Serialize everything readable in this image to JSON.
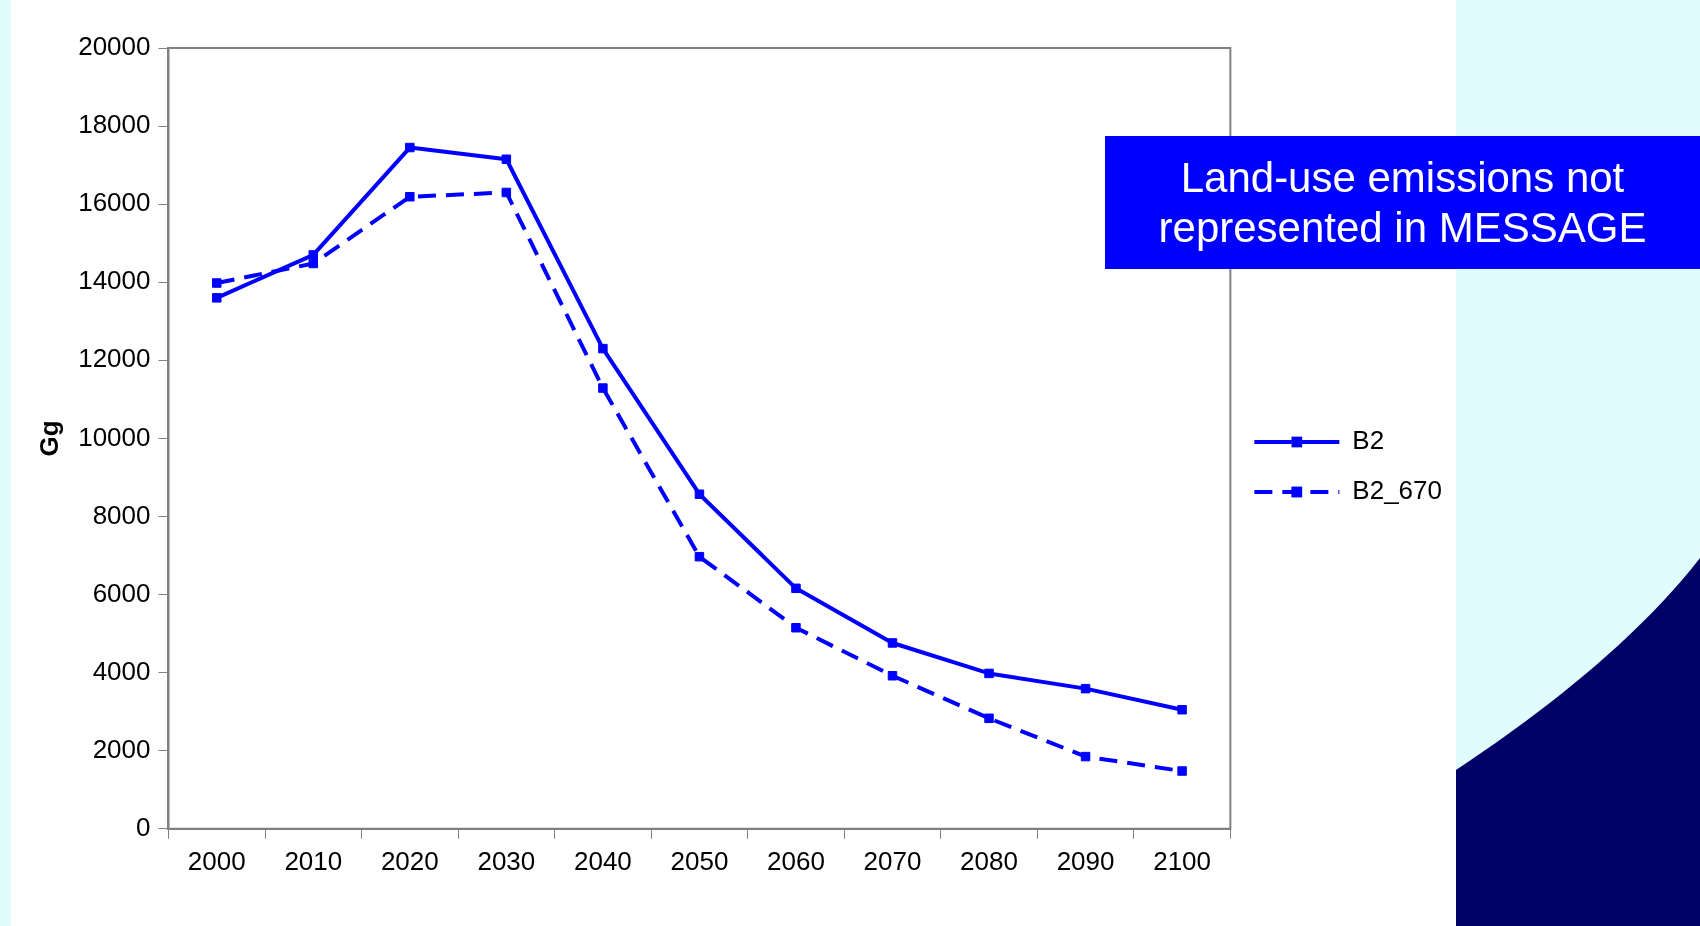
{
  "chart_data": {
    "type": "line",
    "ylabel": "Gg",
    "categories": [
      "2000",
      "2010",
      "2020",
      "2030",
      "2040",
      "2050",
      "2060",
      "2070",
      "2080",
      "2090",
      "2100"
    ],
    "series": [
      {
        "name": "B2",
        "color": "#0000ff",
        "line_style": "solid",
        "values": [
          13600,
          14700,
          17450,
          17150,
          12300,
          8570,
          6160,
          4760,
          3980,
          3590,
          3050
        ]
      },
      {
        "name": "B2_670",
        "color": "#0000ff",
        "line_style": "dashed",
        "values": [
          13980,
          14480,
          16190,
          16300,
          11290,
          6970,
          5150,
          3920,
          2830,
          1850,
          1480
        ]
      }
    ],
    "ylim": [
      0,
      20000
    ],
    "yticks": [
      0,
      2000,
      4000,
      6000,
      8000,
      10000,
      12000,
      14000,
      16000,
      18000,
      20000
    ],
    "grid": false,
    "legend": "right",
    "marker": "square",
    "annotations": [
      "Land-use emissions not represented in MESSAGE"
    ]
  }
}
